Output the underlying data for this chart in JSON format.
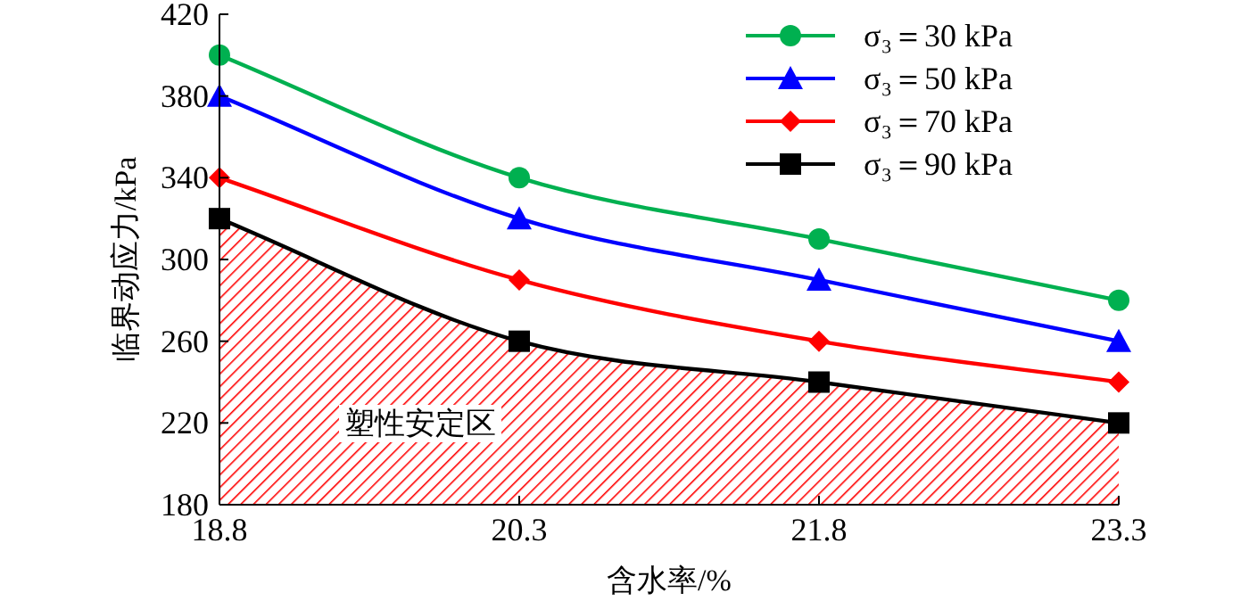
{
  "chart_data": {
    "type": "line",
    "xlabel": "含水率/%",
    "ylabel": "临界动应力/kPa",
    "x": [
      18.8,
      20.3,
      21.8,
      23.3
    ],
    "xlim": [
      18.8,
      23.3
    ],
    "xticks": [
      18.8,
      20.3,
      21.8,
      23.3
    ],
    "ylim": [
      180,
      420
    ],
    "yticks": [
      180,
      220,
      260,
      300,
      340,
      380,
      420
    ],
    "grid": false,
    "legend": "top right",
    "series": [
      {
        "name": "σ₃＝30 kPa",
        "color": "#00b050",
        "marker": "circle",
        "values": [
          400,
          340,
          310,
          280
        ]
      },
      {
        "name": "σ₃＝50 kPa",
        "color": "#0000ff",
        "marker": "triangle",
        "values": [
          380,
          320,
          290,
          260
        ]
      },
      {
        "name": "σ₃＝70 kPa",
        "color": "#ff0000",
        "marker": "diamond",
        "values": [
          340,
          290,
          260,
          240
        ]
      },
      {
        "name": "σ₃＝90 kPa",
        "type": "area",
        "color": "#000000",
        "marker": "square",
        "values": [
          320,
          260,
          240,
          220
        ]
      }
    ],
    "annotations": [
      "塑性安定区"
    ]
  }
}
